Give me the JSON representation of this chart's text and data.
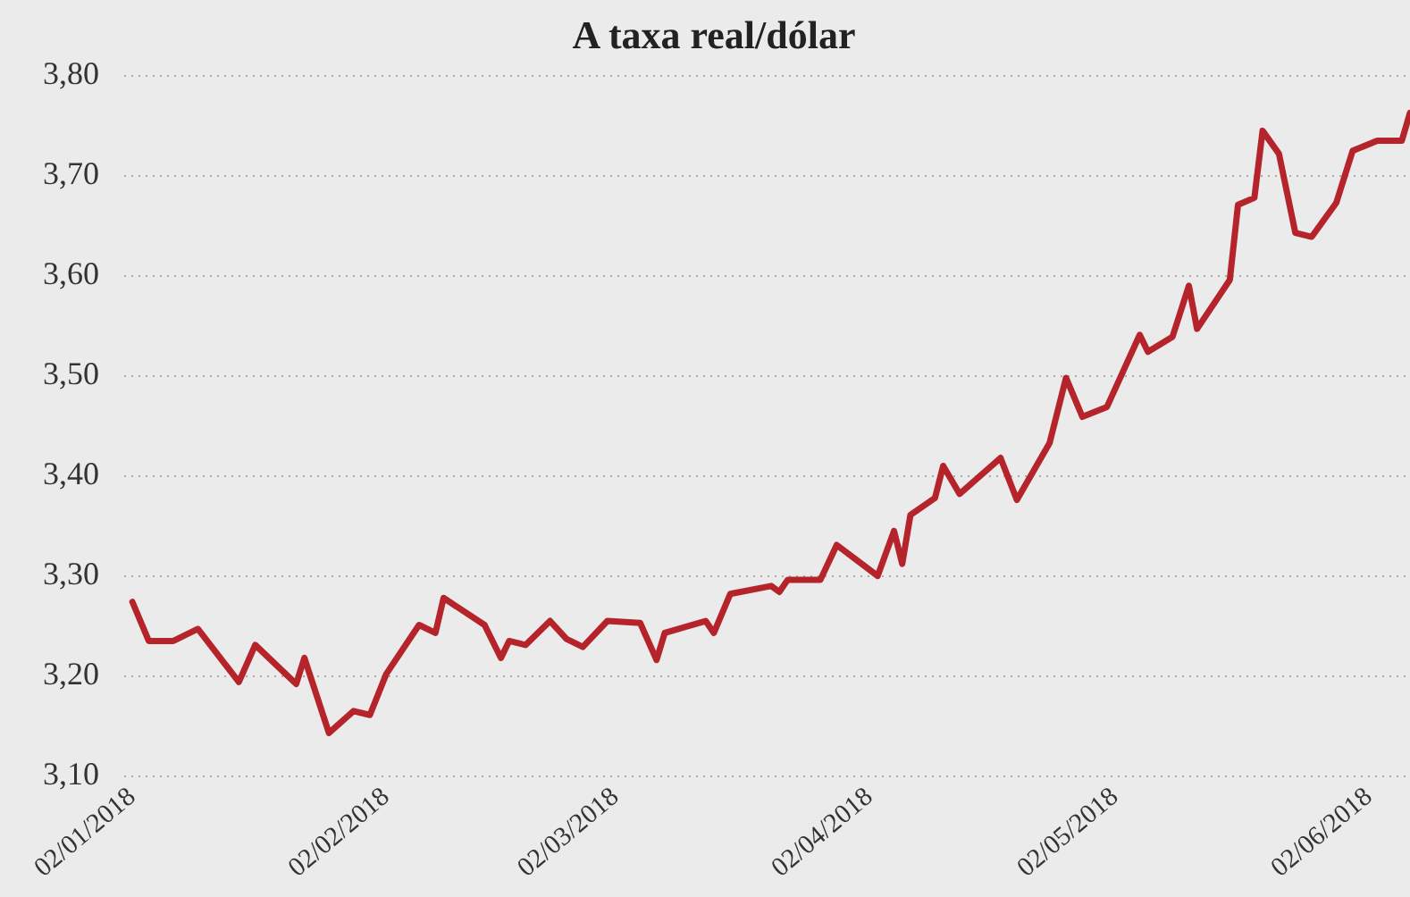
{
  "chart_data": {
    "type": "line",
    "title": "A taxa real/dólar",
    "x": [
      "2018-01-02",
      "2018-01-04",
      "2018-01-07",
      "2018-01-10",
      "2018-01-15",
      "2018-01-17",
      "2018-01-22",
      "2018-01-23",
      "2018-01-26",
      "2018-01-29",
      "2018-01-31",
      "2018-02-02",
      "2018-02-06",
      "2018-02-08",
      "2018-02-09",
      "2018-02-14",
      "2018-02-16",
      "2018-02-17",
      "2018-02-19",
      "2018-02-22",
      "2018-02-24",
      "2018-02-26",
      "2018-03-01",
      "2018-03-05",
      "2018-03-07",
      "2018-03-08",
      "2018-03-13",
      "2018-03-14",
      "2018-03-16",
      "2018-03-21",
      "2018-03-22",
      "2018-03-23",
      "2018-03-27",
      "2018-03-29",
      "2018-04-03",
      "2018-04-05",
      "2018-04-06",
      "2018-04-07",
      "2018-04-10",
      "2018-04-11",
      "2018-04-13",
      "2018-04-18",
      "2018-04-20",
      "2018-04-24",
      "2018-04-26",
      "2018-04-28",
      "2018-05-01",
      "2018-05-05",
      "2018-05-06",
      "2018-05-09",
      "2018-05-11",
      "2018-05-12",
      "2018-05-16",
      "2018-05-17",
      "2018-05-19",
      "2018-05-20",
      "2018-05-22",
      "2018-05-24",
      "2018-05-26",
      "2018-05-29",
      "2018-05-31",
      "2018-06-03",
      "2018-06-06",
      "2018-06-07"
    ],
    "series": [
      {
        "color": "#b5242a",
        "values": [
          3.274,
          3.235,
          3.235,
          3.247,
          3.194,
          3.231,
          3.192,
          3.218,
          3.143,
          3.165,
          3.161,
          3.202,
          3.251,
          3.243,
          3.278,
          3.251,
          3.218,
          3.235,
          3.231,
          3.255,
          3.237,
          3.229,
          3.255,
          3.253,
          3.216,
          3.243,
          3.255,
          3.243,
          3.282,
          3.29,
          3.284,
          3.296,
          3.296,
          3.331,
          3.3,
          3.345,
          3.312,
          3.361,
          3.378,
          3.41,
          3.382,
          3.418,
          3.376,
          3.433,
          3.498,
          3.459,
          3.469,
          3.541,
          3.524,
          3.539,
          3.59,
          3.547,
          3.596,
          3.671,
          3.678,
          3.745,
          3.722,
          3.643,
          3.639,
          3.673,
          3.725,
          3.735,
          3.735,
          3.763
        ]
      }
    ],
    "xlim": [
      "2018-01-01",
      "2018-06-07"
    ],
    "xticks": [
      {
        "value": "2018-01-02",
        "label": "02/01/2018"
      },
      {
        "value": "2018-02-02",
        "label": "02/02/2018"
      },
      {
        "value": "2018-03-02",
        "label": "02/03/2018"
      },
      {
        "value": "2018-04-02",
        "label": "02/04/2018"
      },
      {
        "value": "2018-05-02",
        "label": "02/05/2018"
      },
      {
        "value": "2018-06-02",
        "label": "02/06/2018"
      }
    ],
    "ylim": [
      3.1,
      3.8
    ],
    "yticks": [
      {
        "value": 3.1,
        "label": "3,10"
      },
      {
        "value": 3.2,
        "label": "3,20"
      },
      {
        "value": 3.3,
        "label": "3,30"
      },
      {
        "value": 3.4,
        "label": "3,40"
      },
      {
        "value": 3.5,
        "label": "3,50"
      },
      {
        "value": 3.6,
        "label": "3,60"
      },
      {
        "value": 3.7,
        "label": "3,70"
      },
      {
        "value": 3.8,
        "label": "3,80"
      }
    ],
    "grid": "y",
    "marker": "none",
    "line_style": "solid"
  }
}
